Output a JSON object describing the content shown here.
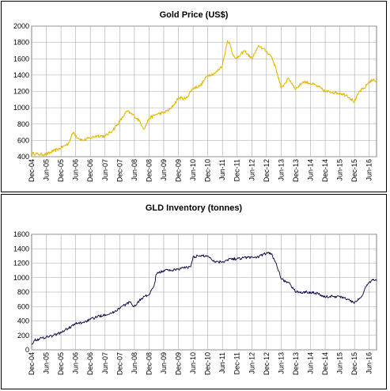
{
  "chart_data": [
    {
      "type": "line",
      "title": "Gold  Price (US$)",
      "xlabel": "",
      "ylabel": "",
      "ylim": [
        400,
        2000
      ],
      "yticks": [
        400,
        600,
        800,
        1000,
        1200,
        1400,
        1600,
        1800,
        2000
      ],
      "xlim": [
        "2004-12",
        "2016-09"
      ],
      "xtick_labels": [
        "Dec-04",
        "Jun-05",
        "Dec-05",
        "Jun-06",
        "Dec-06",
        "Jun-07",
        "Dec-07",
        "Jun-08",
        "Dec-08",
        "Jun-09",
        "Dec-09",
        "Jun-10",
        "Dec-10",
        "Jun-11",
        "Dec-11",
        "Jun-12",
        "Dec-12",
        "Jun-13",
        "Dec-13",
        "Jun-14",
        "Dec-14",
        "Jun-15",
        "Dec-15",
        "Jun-16"
      ],
      "grid": true,
      "legend": "none",
      "color": "#e6b800",
      "series": [
        {
          "x": [
            "2004-12",
            "2005-03",
            "2005-06",
            "2005-09",
            "2005-12",
            "2006-03",
            "2006-05",
            "2006-07",
            "2006-09",
            "2006-12",
            "2007-03",
            "2007-06",
            "2007-09",
            "2007-12",
            "2008-03",
            "2008-06",
            "2008-08",
            "2008-10",
            "2008-12",
            "2009-03",
            "2009-06",
            "2009-09",
            "2009-12",
            "2010-03",
            "2010-06",
            "2010-09",
            "2010-12",
            "2011-03",
            "2011-06",
            "2011-08",
            "2011-09",
            "2011-10",
            "2011-12",
            "2012-03",
            "2012-06",
            "2012-09",
            "2012-12",
            "2013-02",
            "2013-04",
            "2013-06",
            "2013-09",
            "2013-12",
            "2014-03",
            "2014-06",
            "2014-09",
            "2014-12",
            "2015-03",
            "2015-06",
            "2015-09",
            "2015-12",
            "2016-02",
            "2016-04",
            "2016-06",
            "2016-08",
            "2016-09"
          ],
          "values": [
            442,
            428,
            430,
            470,
            510,
            560,
            700,
            630,
            600,
            630,
            660,
            650,
            720,
            830,
            960,
            900,
            840,
            740,
            870,
            920,
            940,
            990,
            1120,
            1110,
            1240,
            1270,
            1400,
            1420,
            1520,
            1820,
            1790,
            1660,
            1600,
            1700,
            1600,
            1760,
            1690,
            1630,
            1470,
            1240,
            1360,
            1230,
            1320,
            1300,
            1260,
            1200,
            1190,
            1180,
            1150,
            1070,
            1200,
            1240,
            1320,
            1340,
            1330
          ]
        }
      ]
    },
    {
      "type": "line",
      "title": "GLD  Inventory  (tonnes)",
      "xlabel": "",
      "ylabel": "",
      "ylim": [
        0,
        1600
      ],
      "yticks": [
        0,
        200,
        400,
        600,
        800,
        1000,
        1200,
        1400,
        1600
      ],
      "xlim": [
        "2004-12",
        "2016-09"
      ],
      "xtick_labels": [
        "Dec-04",
        "Jun-05",
        "Dec-05",
        "Jun-06",
        "Dec-06",
        "Jun-07",
        "Dec-07",
        "Jun-08",
        "Dec-08",
        "Jun-09",
        "Dec-09",
        "Jun-10",
        "Dec-10",
        "Jun-11",
        "Dec-11",
        "Jun-12",
        "Dec-12",
        "Jun-13",
        "Dec-13",
        "Jun-14",
        "Dec-14",
        "Jun-15",
        "Dec-15",
        "Jun-16"
      ],
      "grid": true,
      "legend": "none",
      "color": "#000040",
      "series": [
        {
          "x": [
            "2004-12",
            "2005-01",
            "2005-03",
            "2005-06",
            "2005-09",
            "2005-12",
            "2006-03",
            "2006-06",
            "2006-09",
            "2006-12",
            "2007-03",
            "2007-06",
            "2007-09",
            "2007-12",
            "2008-02",
            "2008-04",
            "2008-06",
            "2008-08",
            "2008-10",
            "2008-12",
            "2009-02",
            "2009-03",
            "2009-06",
            "2009-09",
            "2009-12",
            "2010-03",
            "2010-05",
            "2010-06",
            "2010-09",
            "2010-12",
            "2011-03",
            "2011-06",
            "2011-09",
            "2011-12",
            "2012-03",
            "2012-06",
            "2012-09",
            "2012-12",
            "2013-02",
            "2013-04",
            "2013-06",
            "2013-09",
            "2013-12",
            "2014-03",
            "2014-06",
            "2014-09",
            "2014-12",
            "2015-03",
            "2015-06",
            "2015-09",
            "2015-12",
            "2016-01",
            "2016-03",
            "2016-05",
            "2016-07",
            "2016-09"
          ],
          "values": [
            80,
            130,
            150,
            180,
            200,
            240,
            300,
            360,
            380,
            420,
            460,
            490,
            510,
            580,
            620,
            660,
            600,
            680,
            740,
            760,
            880,
            1050,
            1100,
            1100,
            1120,
            1140,
            1150,
            1290,
            1300,
            1300,
            1220,
            1220,
            1260,
            1260,
            1280,
            1280,
            1290,
            1340,
            1330,
            1200,
            980,
            930,
            800,
            800,
            800,
            780,
            730,
            740,
            740,
            700,
            650,
            680,
            740,
            900,
            960,
            980
          ]
        }
      ]
    }
  ]
}
